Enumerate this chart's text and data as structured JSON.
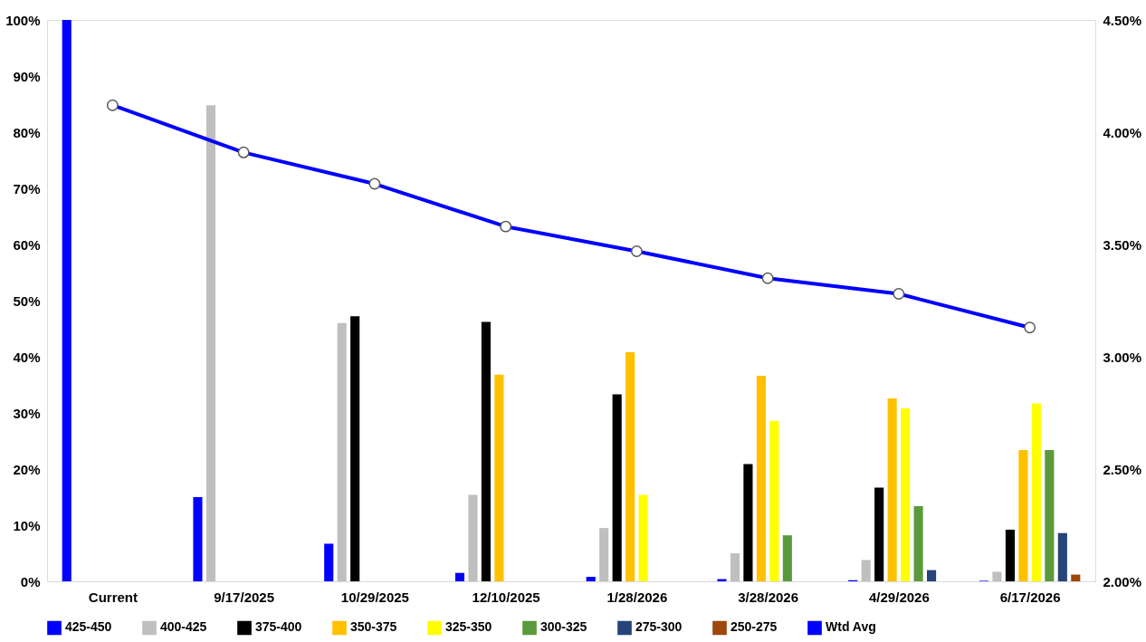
{
  "chart_data": {
    "type": "bar",
    "categories": [
      "Current",
      "9/17/2025",
      "10/29/2025",
      "12/10/2025",
      "1/28/2026",
      "3/28/2026",
      "4/29/2026",
      "6/17/2026"
    ],
    "series": [
      {
        "name": "425-450",
        "color": "#0000ff",
        "values": [
          100,
          15.0,
          6.7,
          1.5,
          0.8,
          0.4,
          0.2,
          0.1
        ]
      },
      {
        "name": "400-425",
        "color": "#bfbfbf",
        "values": [
          null,
          84.8,
          46.0,
          15.4,
          9.5,
          5.0,
          3.8,
          1.7
        ]
      },
      {
        "name": "375-400",
        "color": "#000000",
        "values": [
          null,
          null,
          47.2,
          46.2,
          33.3,
          20.9,
          16.7,
          9.2
        ]
      },
      {
        "name": "350-375",
        "color": "#ffc000",
        "values": [
          null,
          null,
          null,
          36.8,
          40.8,
          36.6,
          32.6,
          23.4
        ]
      },
      {
        "name": "325-350",
        "color": "#ffff00",
        "values": [
          null,
          null,
          null,
          null,
          15.4,
          28.6,
          30.8,
          31.7
        ]
      },
      {
        "name": "300-325",
        "color": "#5b9a3c",
        "values": [
          null,
          null,
          null,
          null,
          null,
          8.2,
          13.4,
          23.4
        ]
      },
      {
        "name": "275-300",
        "color": "#264478",
        "values": [
          null,
          null,
          null,
          null,
          null,
          null,
          2.0,
          8.6
        ]
      },
      {
        "name": "250-275",
        "color": "#9e480e",
        "values": [
          null,
          null,
          null,
          null,
          null,
          null,
          null,
          1.2
        ]
      },
      {
        "name": "Wtd Avg",
        "color": "#0000ff",
        "type": "line",
        "axis": "y2",
        "marker": "circle",
        "values": [
          4.12,
          3.91,
          3.77,
          3.58,
          3.47,
          3.35,
          3.28,
          3.13
        ]
      }
    ],
    "ylim": [
      0,
      100
    ],
    "yticks": [
      {
        "value": 0,
        "label": "0%"
      },
      {
        "value": 10,
        "label": "10%"
      },
      {
        "value": 20,
        "label": "20%"
      },
      {
        "value": 30,
        "label": "30%"
      },
      {
        "value": 40,
        "label": "40%"
      },
      {
        "value": 50,
        "label": "50%"
      },
      {
        "value": 60,
        "label": "60%"
      },
      {
        "value": 70,
        "label": "70%"
      },
      {
        "value": 80,
        "label": "80%"
      },
      {
        "value": 90,
        "label": "90%"
      },
      {
        "value": 100,
        "label": "100%"
      }
    ],
    "y2lim": [
      2.0,
      4.5
    ],
    "y2ticks": [
      {
        "value": 2.0,
        "label": "2.00%"
      },
      {
        "value": 2.5,
        "label": "2.50%"
      },
      {
        "value": 3.0,
        "label": "3.00%"
      },
      {
        "value": 3.5,
        "label": "3.50%"
      },
      {
        "value": 4.0,
        "label": "4.00%"
      },
      {
        "value": 4.5,
        "label": "4.50%"
      }
    ],
    "grid": false,
    "legend": "bottom"
  }
}
